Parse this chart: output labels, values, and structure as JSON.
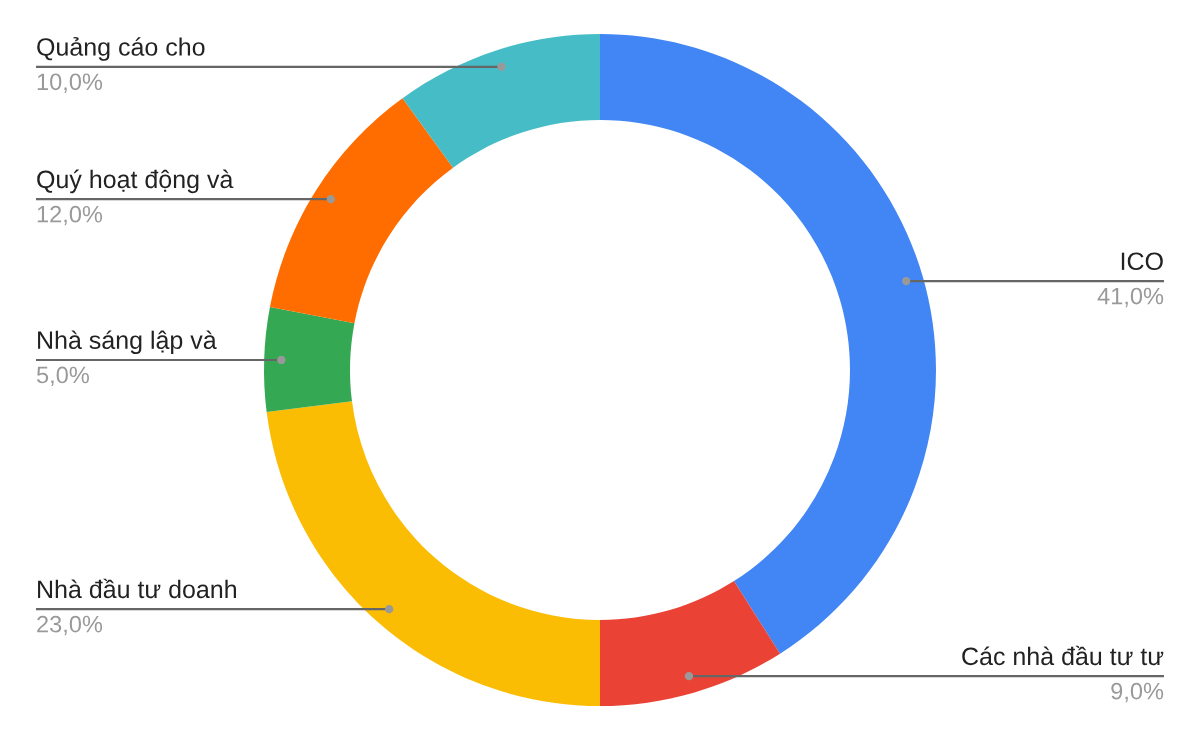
{
  "chart_data": {
    "type": "donut",
    "categories": [
      "ICO",
      "Các nhà đầu tư tư",
      "Nhà đầu tư doanh",
      "Nhà sáng lập và",
      "Quý hoạt động và",
      "Quảng cáo cho"
    ],
    "values": [
      41,
      9,
      23,
      5,
      12,
      10
    ],
    "colors": [
      "#4285f4",
      "#ea4335",
      "#fbbc04",
      "#34a853",
      "#ff6d01",
      "#46bdc6"
    ],
    "value_labels": [
      "41,0%",
      "9,0%",
      "23,0%",
      "5,0%",
      "12,0%",
      "10,0%"
    ],
    "legend": false
  }
}
